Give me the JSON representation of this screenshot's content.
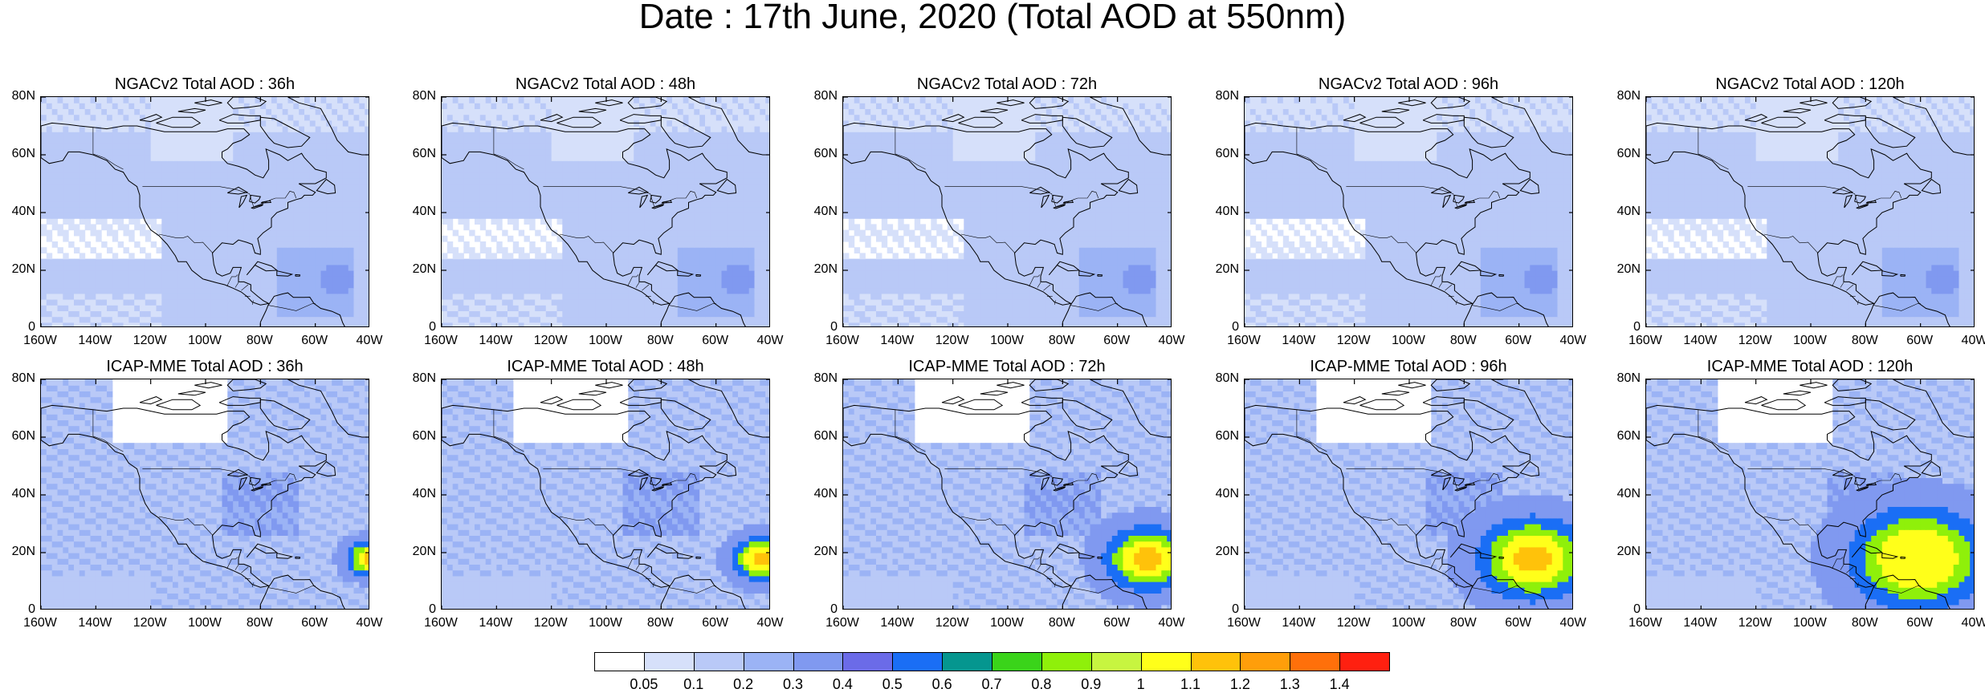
{
  "title": "Date : 17th June, 2020 (Total AOD at 550nm)",
  "lat_labels": [
    "0",
    "20N",
    "40N",
    "60N",
    "80N"
  ],
  "lon_labels": [
    "160W",
    "140W",
    "120W",
    "100W",
    "80W",
    "60W",
    "40W"
  ],
  "panels": [
    {
      "title": "NGACv2 Total AOD : 36h",
      "model": "NGACv2",
      "lead": "36h"
    },
    {
      "title": "NGACv2 Total AOD : 48h",
      "model": "NGACv2",
      "lead": "48h"
    },
    {
      "title": "NGACv2 Total AOD : 72h",
      "model": "NGACv2",
      "lead": "72h"
    },
    {
      "title": "NGACv2 Total AOD : 96h",
      "model": "NGACv2",
      "lead": "96h"
    },
    {
      "title": "NGACv2 Total AOD : 120h",
      "model": "NGACv2",
      "lead": "120h"
    },
    {
      "title": "ICAP-MME Total AOD : 36h",
      "model": "ICAP-MME",
      "lead": "36h"
    },
    {
      "title": "ICAP-MME Total AOD : 48h",
      "model": "ICAP-MME",
      "lead": "48h"
    },
    {
      "title": "ICAP-MME Total AOD : 72h",
      "model": "ICAP-MME",
      "lead": "72h"
    },
    {
      "title": "ICAP-MME Total AOD : 96h",
      "model": "ICAP-MME",
      "lead": "96h"
    },
    {
      "title": "ICAP-MME Total AOD : 120h",
      "model": "ICAP-MME",
      "lead": "120h"
    }
  ],
  "colorbar": {
    "labels": [
      "0.05",
      "0.1",
      "0.2",
      "0.3",
      "0.4",
      "0.5",
      "0.6",
      "0.7",
      "0.8",
      "0.9",
      "1",
      "1.1",
      "1.2",
      "1.3",
      "1.4"
    ],
    "colors": [
      "#ffffff",
      "#d6e0fa",
      "#b9c9f7",
      "#9bb3f5",
      "#8099f0",
      "#6b6be8",
      "#1a6ef5",
      "#05968f",
      "#3ad41a",
      "#8ff00a",
      "#c7f540",
      "#ffff1a",
      "#ffc20a",
      "#ff9e0a",
      "#ff700a",
      "#ff2010"
    ]
  }
}
